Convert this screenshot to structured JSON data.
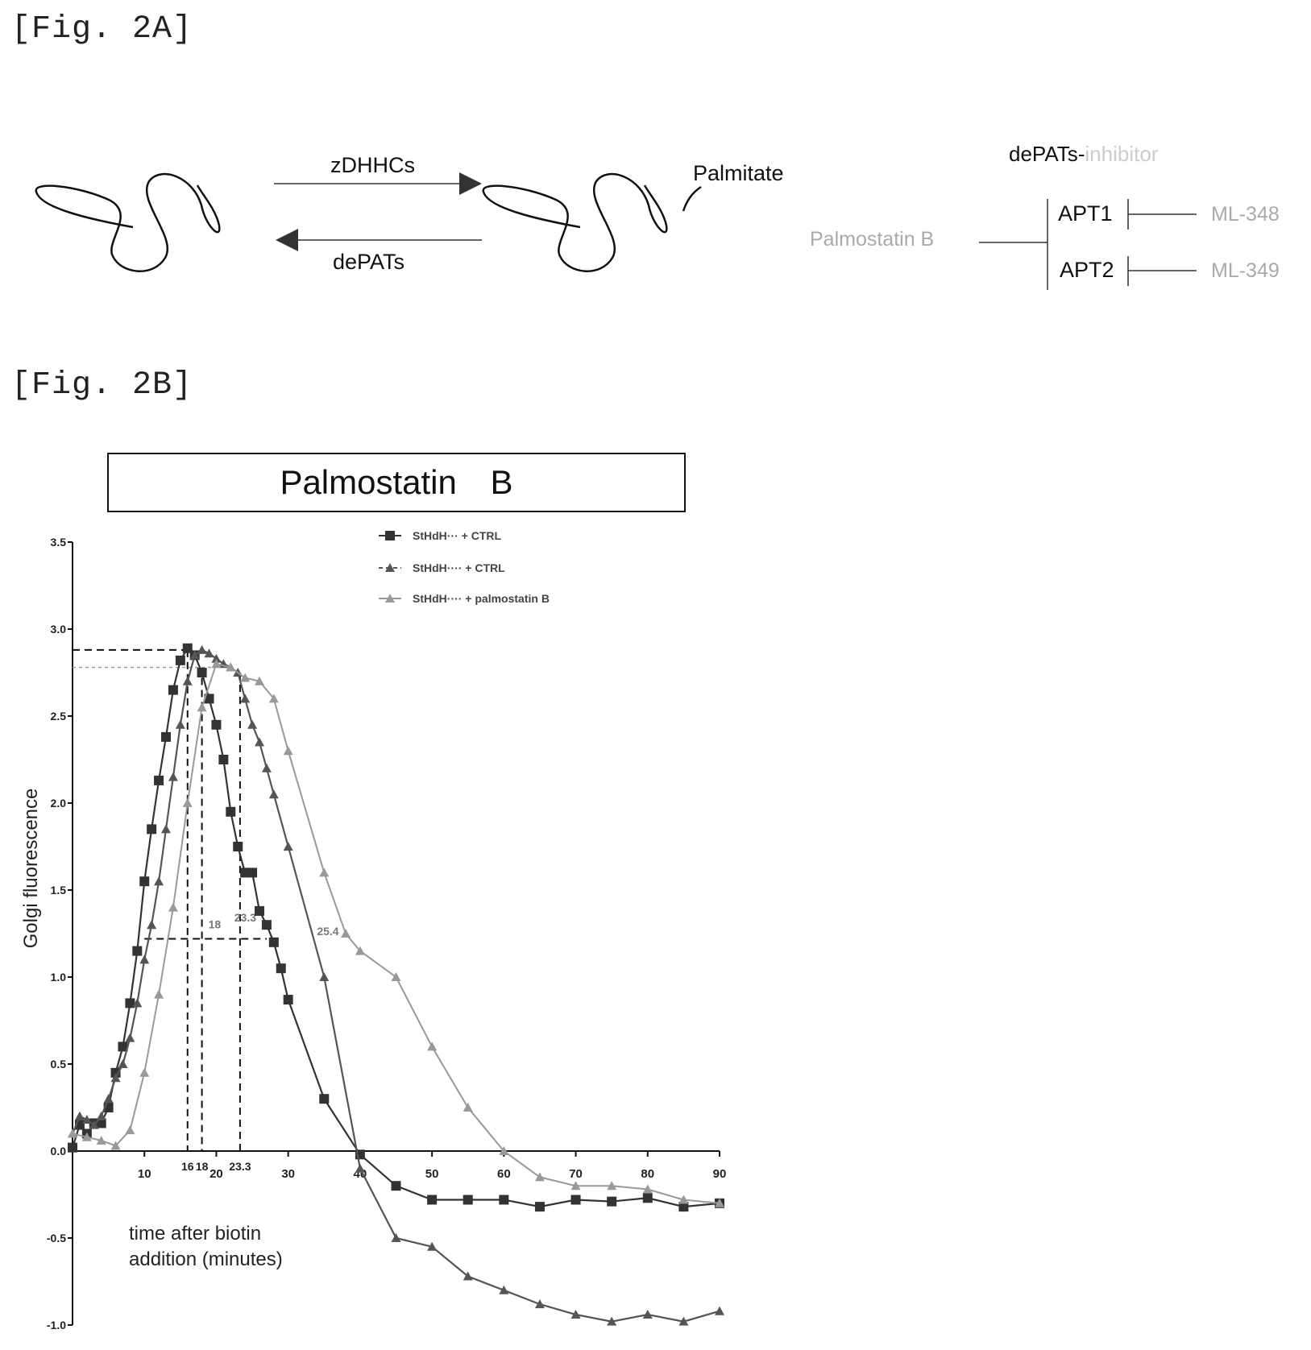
{
  "fig2a": {
    "label": "[Fig. 2A]",
    "forward_enzyme": "zDHHCs",
    "reverse_enzyme": "dePATs",
    "palmitate": "Palmitate",
    "inhibitor_header_main": "dePATs-",
    "inhibitor_header_suffix": "inhibitor",
    "broad_inhibitor": "Palmostatin B",
    "targets": [
      "APT1",
      "APT2"
    ],
    "selective_inhibitors": [
      "ML-348",
      "ML-349"
    ]
  },
  "fig2b": {
    "label": "[Fig. 2B]",
    "title": "Palmostatin  B",
    "xlabel_line1": "time after biotin",
    "xlabel_line2": "addition (minutes)",
    "ylabel": "Golgi fluorescence",
    "legend": [
      "StHdH··· + CTRL",
      "StHdH···· + CTRL",
      "StHdH···· + palmostatin B"
    ],
    "annotations": [
      "16",
      "18",
      "23.3",
      "23.3",
      "25.4"
    ]
  },
  "chart_data": {
    "type": "line",
    "title": "Palmostatin  B",
    "xlabel": "time after biotin addition (minutes)",
    "ylabel": "Golgi fluorescence",
    "xlim": [
      0,
      90
    ],
    "ylim": [
      -1.0,
      3.5
    ],
    "xticks": [
      10,
      20,
      30,
      40,
      50,
      60,
      70,
      80,
      90
    ],
    "xtick_labels": [
      "10",
      "20",
      "30",
      "40",
      "50",
      "60",
      "70",
      "80",
      "90"
    ],
    "yticks": [
      -1.0,
      -0.5,
      0.0,
      0.5,
      1.0,
      1.5,
      2.0,
      2.5,
      3.0,
      3.5
    ],
    "ytick_labels": [
      "-1.0",
      "-0.5",
      "0.0",
      "0.5",
      "1.0",
      "1.5",
      "2.0",
      "2.5",
      "3.0",
      "3.5"
    ],
    "extra_xtick_labels": [
      {
        "x": 16,
        "label": "16"
      },
      {
        "x": 18,
        "label": "18"
      },
      {
        "x": 23.3,
        "label": "23.3"
      }
    ],
    "series": [
      {
        "name": "StHdH··· + CTRL",
        "color": "#333333",
        "marker": "square",
        "x": [
          0,
          1,
          2,
          3,
          4,
          5,
          6,
          7,
          8,
          9,
          10,
          11,
          12,
          13,
          14,
          15,
          16,
          17,
          18,
          19,
          20,
          21,
          22,
          23,
          24,
          25,
          26,
          27,
          28,
          29,
          30,
          35,
          40,
          45,
          50,
          55,
          60,
          65,
          70,
          75,
          80,
          85,
          90
        ],
        "y": [
          0.02,
          0.15,
          0.1,
          0.16,
          0.16,
          0.25,
          0.45,
          0.6,
          0.85,
          1.15,
          1.55,
          1.85,
          2.13,
          2.38,
          2.65,
          2.82,
          2.89,
          2.85,
          2.75,
          2.6,
          2.45,
          2.25,
          1.95,
          1.75,
          1.6,
          1.6,
          1.38,
          1.3,
          1.2,
          1.05,
          0.87,
          0.3,
          -0.02,
          -0.2,
          -0.28,
          -0.28,
          -0.28,
          -0.32,
          -0.28,
          -0.29,
          -0.27,
          -0.32,
          -0.3
        ]
      },
      {
        "name": "StHdH···· + CTRL",
        "color": "#555555",
        "marker": "triangle",
        "x": [
          0,
          1,
          2,
          3,
          4,
          5,
          6,
          7,
          8,
          9,
          10,
          11,
          12,
          13,
          14,
          15,
          16,
          17,
          18,
          19,
          20,
          21,
          22,
          23,
          24,
          25,
          26,
          27,
          28,
          30,
          35,
          40,
          45,
          50,
          55,
          60,
          65,
          70,
          75,
          80,
          85,
          90
        ],
        "y": [
          0.1,
          0.2,
          0.18,
          0.15,
          0.2,
          0.3,
          0.42,
          0.5,
          0.65,
          0.85,
          1.1,
          1.3,
          1.55,
          1.85,
          2.15,
          2.45,
          2.7,
          2.85,
          2.88,
          2.86,
          2.83,
          2.8,
          2.78,
          2.75,
          2.6,
          2.45,
          2.35,
          2.2,
          2.05,
          1.75,
          1.0,
          -0.1,
          -0.5,
          -0.55,
          -0.72,
          -0.8,
          -0.88,
          -0.94,
          -0.98,
          -0.94,
          -0.98,
          -0.92
        ]
      },
      {
        "name": "StHdH···· + palmostatin B",
        "color": "#999999",
        "marker": "triangle",
        "x": [
          0,
          2,
          4,
          6,
          8,
          10,
          12,
          14,
          16,
          18,
          20,
          22,
          24,
          26,
          28,
          30,
          35,
          38,
          40,
          45,
          50,
          55,
          60,
          65,
          70,
          75,
          80,
          85,
          90
        ],
        "y": [
          0.1,
          0.08,
          0.06,
          0.03,
          0.12,
          0.45,
          0.9,
          1.4,
          2.0,
          2.55,
          2.8,
          2.78,
          2.72,
          2.7,
          2.6,
          2.3,
          1.6,
          1.25,
          1.15,
          1.0,
          0.6,
          0.25,
          0.0,
          -0.15,
          -0.2,
          -0.2,
          -0.22,
          -0.28,
          -0.3
        ]
      }
    ],
    "grid": false,
    "legend_position": "top-right"
  }
}
